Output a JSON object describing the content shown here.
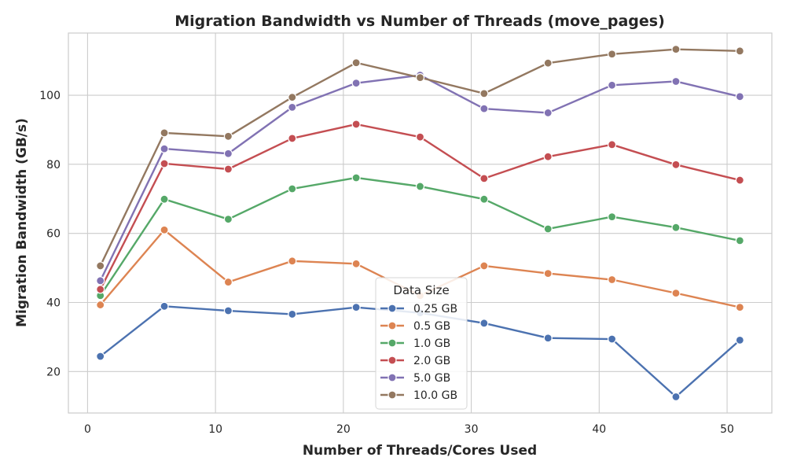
{
  "chart_data": {
    "type": "line",
    "title": "Migration Bandwidth vs Number of Threads (move_pages)",
    "xlabel": "Number of Threads/Cores Used",
    "ylabel": "Migration Bandwidth (GB/s)",
    "xlim": [
      -1.5,
      53.5
    ],
    "ylim": [
      8,
      118
    ],
    "xticks": [
      0,
      10,
      20,
      30,
      40,
      50
    ],
    "yticks": [
      20,
      40,
      60,
      80,
      100
    ],
    "grid": true,
    "legend": {
      "title": "Data Size",
      "position": "bottom-center"
    },
    "x": [
      1,
      6,
      11,
      16,
      21,
      26,
      31,
      36,
      41,
      46,
      51
    ],
    "series": [
      {
        "name": "0.25 GB",
        "color": "#4c72b0",
        "values": [
          24.4,
          38.9,
          37.6,
          36.6,
          38.6,
          37.0,
          34.0,
          29.7,
          29.4,
          12.7,
          29.1
        ]
      },
      {
        "name": "0.5 GB",
        "color": "#dd8452",
        "values": [
          39.3,
          61.0,
          45.9,
          52.0,
          51.2,
          42.0,
          50.6,
          48.4,
          46.6,
          42.7,
          38.6
        ]
      },
      {
        "name": "1.0 GB",
        "color": "#55a868",
        "values": [
          42.0,
          69.9,
          64.1,
          72.9,
          76.1,
          73.6,
          69.9,
          61.3,
          64.8,
          61.7,
          57.9
        ]
      },
      {
        "name": "2.0 GB",
        "color": "#c44e52",
        "values": [
          43.8,
          80.2,
          78.6,
          87.5,
          91.6,
          87.9,
          75.9,
          82.2,
          85.7,
          79.9,
          75.4
        ]
      },
      {
        "name": "5.0 GB",
        "color": "#8172b3",
        "values": [
          46.3,
          84.5,
          83.1,
          96.5,
          103.5,
          105.8,
          96.1,
          94.9,
          102.9,
          104.0,
          99.6
        ]
      },
      {
        "name": "10.0 GB",
        "color": "#937860",
        "values": [
          50.6,
          89.1,
          88.1,
          99.4,
          109.4,
          105.1,
          100.5,
          109.3,
          111.9,
          113.3,
          112.8
        ]
      }
    ]
  }
}
